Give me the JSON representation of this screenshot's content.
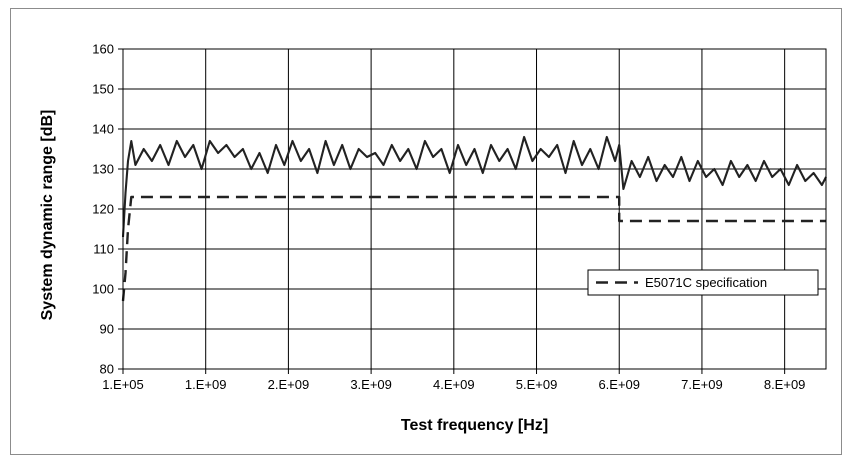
{
  "chart_data": {
    "type": "line",
    "title": "",
    "xlabel": "Test frequency [Hz]",
    "ylabel": "System dynamic range [dB]",
    "xlim": [
      100000,
      8500000000
    ],
    "ylim": [
      80,
      160
    ],
    "x_ticks": [
      {
        "value": 100000,
        "label": "1.E+05"
      },
      {
        "value": 1000000000,
        "label": "1.E+09"
      },
      {
        "value": 2000000000,
        "label": "2.E+09"
      },
      {
        "value": 3000000000,
        "label": "3.E+09"
      },
      {
        "value": 4000000000,
        "label": "4.E+09"
      },
      {
        "value": 5000000000,
        "label": "5.E+09"
      },
      {
        "value": 6000000000,
        "label": "6.E+09"
      },
      {
        "value": 7000000000,
        "label": "7.E+09"
      },
      {
        "value": 8000000000,
        "label": "8.E+09"
      }
    ],
    "y_ticks": [
      80,
      90,
      100,
      110,
      120,
      130,
      140,
      150,
      160
    ],
    "grid": true,
    "legend": {
      "placement": "right",
      "entries": [
        "E5071C specification"
      ]
    },
    "series": [
      {
        "style": "solid",
        "color": "#222222",
        "x": [
          100000,
          30000000,
          60000000,
          100000000,
          150000000,
          250000000,
          350000000,
          450000000,
          550000000,
          650000000,
          750000000,
          850000000,
          950000000,
          1050000000,
          1150000000,
          1250000000,
          1350000000,
          1450000000,
          1550000000,
          1650000000,
          1750000000,
          1850000000,
          1950000000,
          2050000000,
          2150000000,
          2250000000,
          2350000000,
          2450000000,
          2550000000,
          2650000000,
          2750000000,
          2850000000,
          2950000000,
          3050000000,
          3150000000,
          3250000000,
          3350000000,
          3450000000,
          3550000000,
          3650000000,
          3750000000,
          3850000000,
          3950000000,
          4050000000,
          4150000000,
          4250000000,
          4350000000,
          4450000000,
          4550000000,
          4650000000,
          4750000000,
          4850000000,
          4950000000,
          5050000000,
          5150000000,
          5250000000,
          5350000000,
          5450000000,
          5550000000,
          5650000000,
          5750000000,
          5850000000,
          5950000000,
          6000000000,
          6050000000,
          6150000000,
          6250000000,
          6350000000,
          6450000000,
          6550000000,
          6650000000,
          6750000000,
          6850000000,
          6950000000,
          7050000000,
          7150000000,
          7250000000,
          7350000000,
          7450000000,
          7550000000,
          7650000000,
          7750000000,
          7850000000,
          7950000000,
          8050000000,
          8150000000,
          8250000000,
          8350000000,
          8450000000,
          8500000000
        ],
        "y": [
          113,
          124,
          132,
          137,
          131,
          135,
          132,
          136,
          131,
          137,
          133,
          136,
          130,
          137,
          134,
          136,
          133,
          135,
          130,
          134,
          129,
          136,
          131,
          137,
          132,
          135,
          129,
          137,
          131,
          136,
          130,
          135,
          133,
          134,
          131,
          136,
          132,
          135,
          130,
          137,
          133,
          135,
          129,
          136,
          131,
          135,
          129,
          136,
          132,
          135,
          130,
          138,
          132,
          135,
          133,
          136,
          129,
          137,
          131,
          135,
          130,
          138,
          132,
          136,
          125,
          132,
          128,
          133,
          127,
          131,
          128,
          133,
          127,
          132,
          128,
          130,
          126,
          132,
          128,
          131,
          127,
          132,
          128,
          130,
          126,
          131,
          127,
          129,
          126,
          128
        ]
      },
      {
        "name": "E5071C specification",
        "style": "dashed",
        "color": "#222222",
        "x": [
          100000,
          30000000,
          60000000,
          100000000,
          150000000,
          6000000000,
          6000000000,
          8500000000
        ],
        "y": [
          97,
          104,
          115,
          123,
          123,
          123,
          117,
          117
        ]
      }
    ]
  }
}
